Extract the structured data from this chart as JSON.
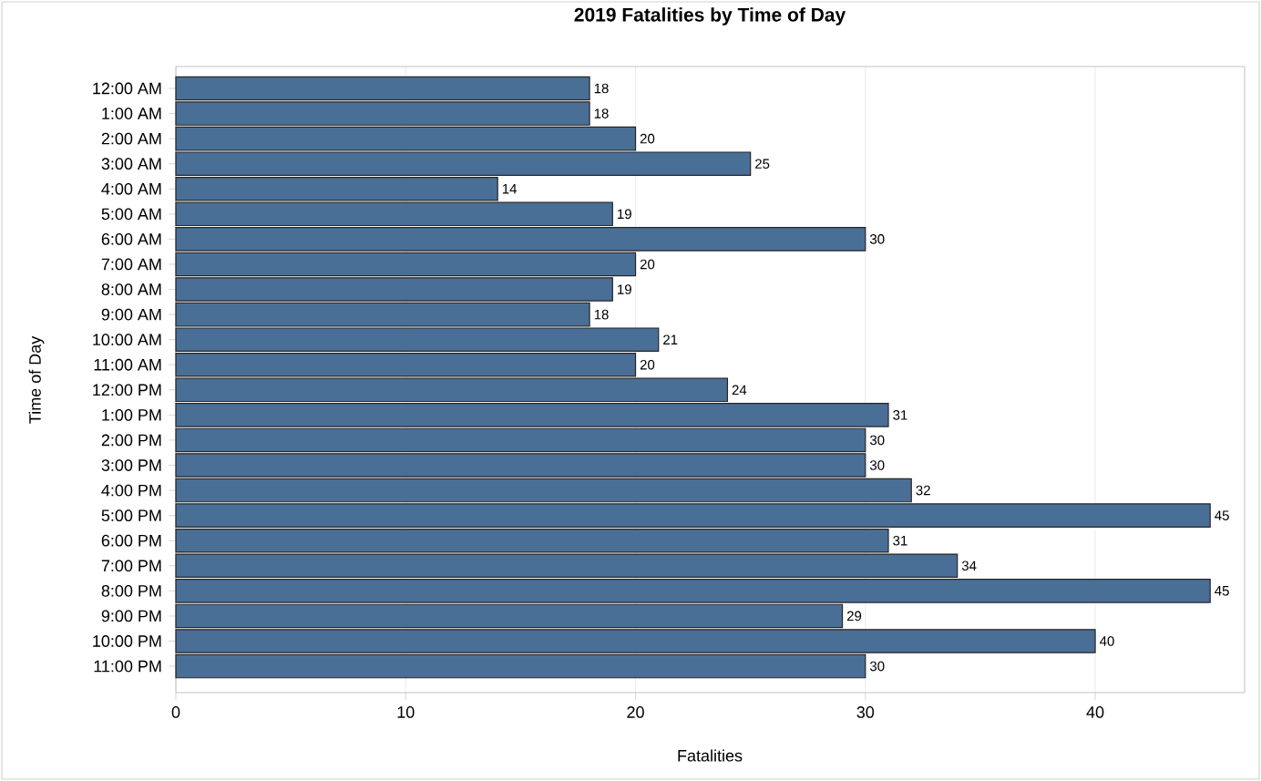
{
  "chart_data": {
    "type": "bar",
    "orientation": "horizontal",
    "title": "2019 Fatalities by Time of Day",
    "xlabel": "Fatalities",
    "ylabel": "Time of Day",
    "categories": [
      "12:00 AM",
      "1:00 AM",
      "2:00 AM",
      "3:00 AM",
      "4:00 AM",
      "5:00 AM",
      "6:00 AM",
      "7:00 AM",
      "8:00 AM",
      "9:00 AM",
      "10:00 AM",
      "11:00 AM",
      "12:00 PM",
      "1:00 PM",
      "2:00 PM",
      "3:00 PM",
      "4:00 PM",
      "5:00 PM",
      "6:00 PM",
      "7:00 PM",
      "8:00 PM",
      "9:00 PM",
      "10:00 PM",
      "11:00 PM"
    ],
    "values": [
      18,
      18,
      20,
      25,
      14,
      19,
      30,
      20,
      19,
      18,
      21,
      20,
      24,
      31,
      30,
      30,
      32,
      45,
      31,
      34,
      45,
      29,
      40,
      30
    ],
    "color": "#4a6f96",
    "xlim": [
      0,
      46.5
    ],
    "xticks": [
      0,
      10,
      20,
      30,
      40
    ],
    "grid": "x",
    "data_labels": true
  }
}
